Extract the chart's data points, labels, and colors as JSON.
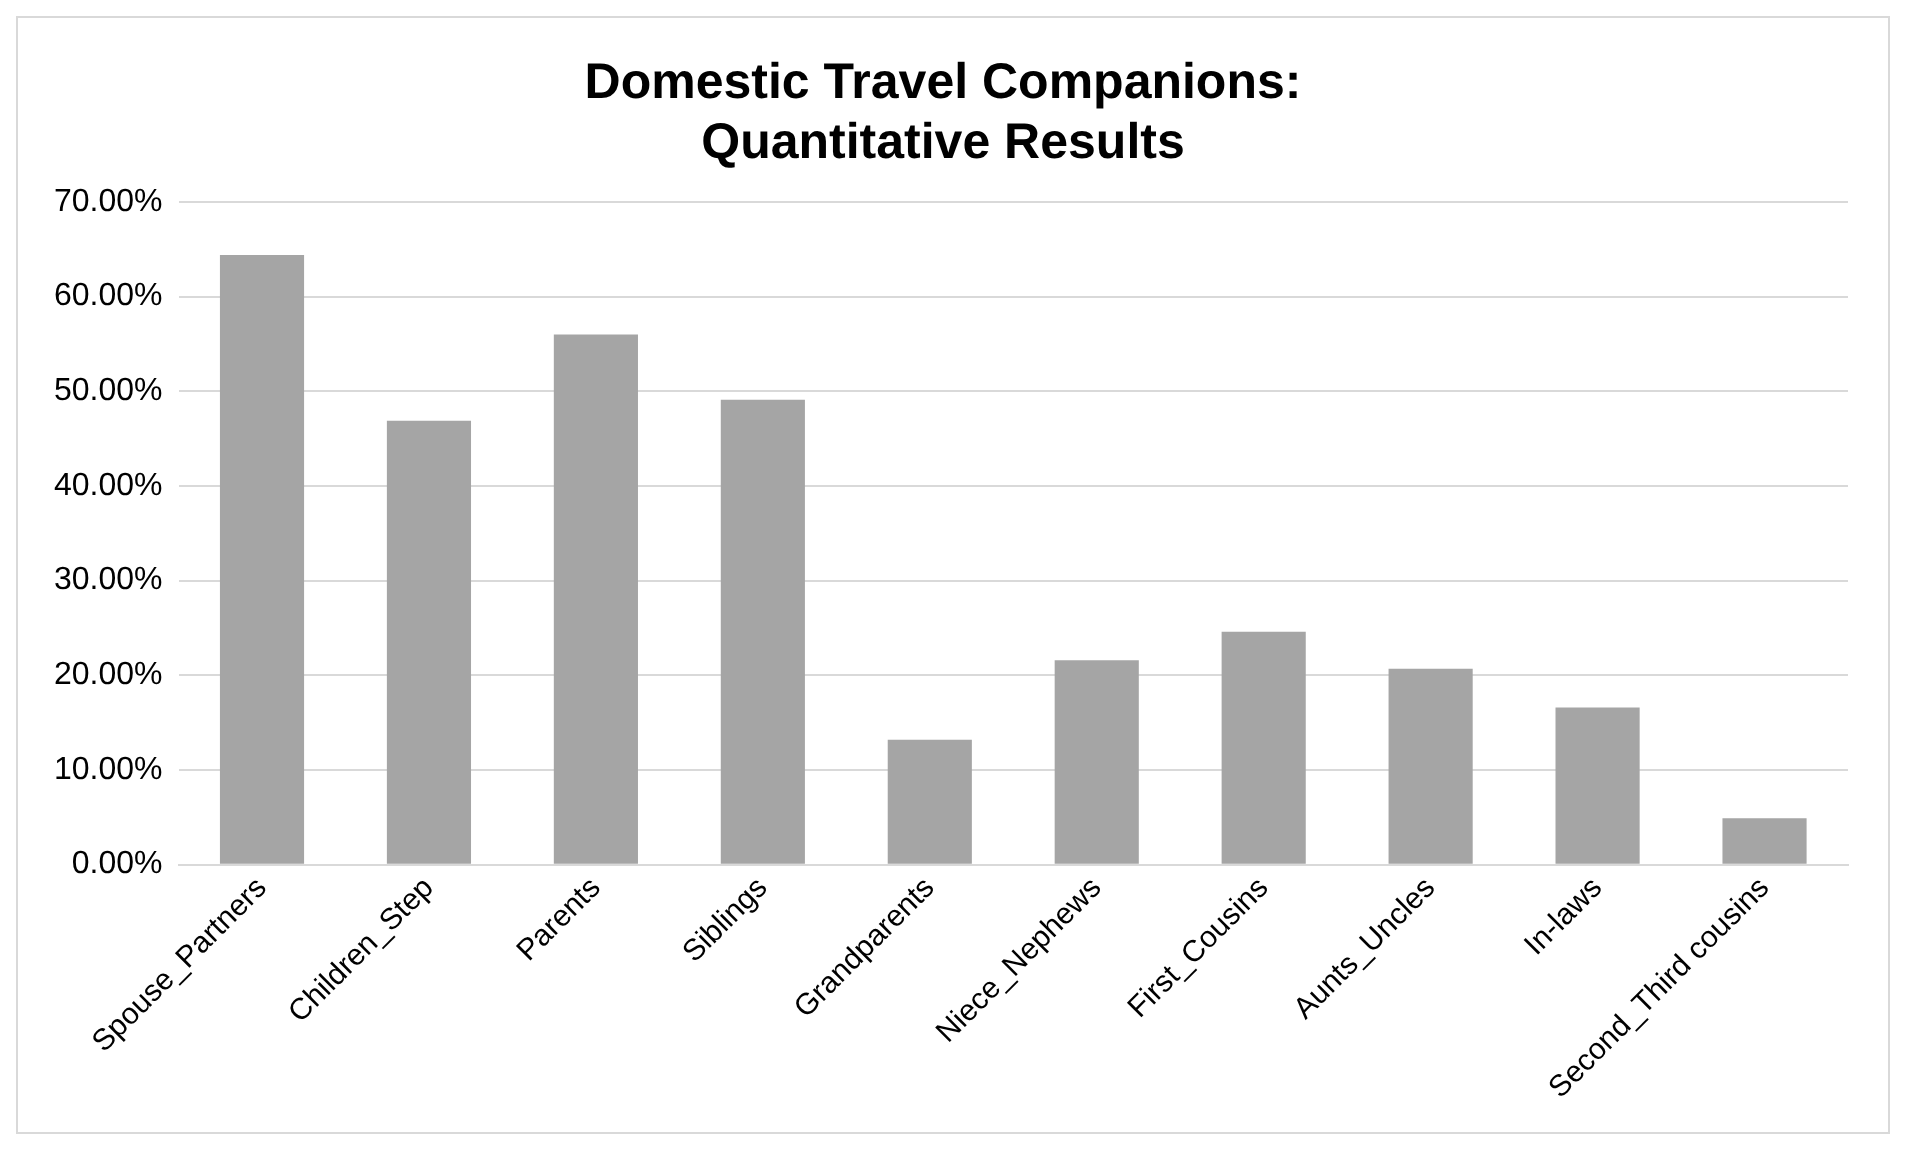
{
  "chart_data": {
    "type": "bar",
    "title": "Domestic Travel Companions:\nQuantitative Results",
    "categories": [
      "Spouse_Partners",
      "Children_Step",
      "Parents",
      "Siblings",
      "Grandparents",
      "Niece_Nephews",
      "First_Cousins",
      "Aunts_Uncles",
      "In-laws",
      "Second_Third cousins"
    ],
    "values": [
      64.4,
      46.9,
      56.0,
      49.1,
      13.2,
      21.6,
      24.6,
      20.7,
      16.6,
      4.9
    ],
    "color": "#a5a5a5",
    "ylim": [
      0,
      70
    ],
    "yticks": [
      {
        "value": 0,
        "label": "0.00%"
      },
      {
        "value": 10,
        "label": "10.00%"
      },
      {
        "value": 20,
        "label": "20.00%"
      },
      {
        "value": 30,
        "label": "30.00%"
      },
      {
        "value": 40,
        "label": "40.00%"
      },
      {
        "value": 50,
        "label": "50.00%"
      },
      {
        "value": 60,
        "label": "60.00%"
      },
      {
        "value": 70,
        "label": "70.00%"
      }
    ],
    "grid": "y",
    "legend": false
  }
}
